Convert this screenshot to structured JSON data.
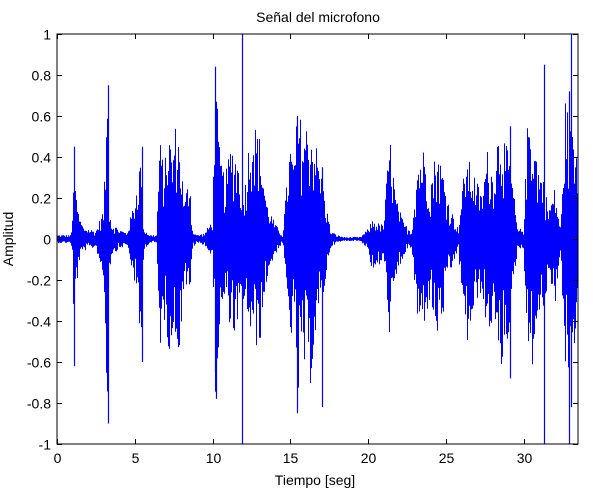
{
  "figure": {
    "title": "Señal del microfono",
    "xlabel": "Tiempo [seg]",
    "ylabel": "Amplitud"
  },
  "chart_data": {
    "type": "line",
    "title": "Señal del microfono",
    "xlabel": "Tiempo [seg]",
    "ylabel": "Amplitud",
    "xlim": [
      0,
      33.5
    ],
    "ylim": [
      -1,
      1
    ],
    "xticks": [
      0,
      5,
      10,
      15,
      20,
      25,
      30
    ],
    "yticks": [
      -1,
      -0.8,
      -0.6,
      -0.4,
      -0.2,
      0,
      0.2,
      0.4,
      0.6,
      0.8,
      1
    ],
    "ytick_labels": [
      "-1",
      "-0.8",
      "-0.6",
      "-0.4",
      "-0.2",
      "0",
      "0.2",
      "0.4",
      "0.6",
      "0.8",
      "1"
    ],
    "grid": false,
    "line_color": "#0000ff",
    "series": [
      {
        "envelope": {
          "t": [
            0,
            0.9,
            1.0,
            1.05,
            1.15,
            1.3,
            1.4,
            1.7,
            2.5,
            3.0,
            3.25,
            3.35,
            3.5,
            4.0,
            4.5,
            5.0,
            5.45,
            5.5,
            5.6,
            6.0,
            6.4,
            6.6,
            6.9,
            7.2,
            7.4,
            7.65,
            7.9,
            8.2,
            8.55,
            8.7,
            9.0,
            9.5,
            10.0,
            10.2,
            10.45,
            10.8,
            11.2,
            11.6,
            12.0,
            12.5,
            13.0,
            13.5,
            14.0,
            14.5,
            15.0,
            15.2,
            15.5,
            15.8,
            16.2,
            16.6,
            17.0,
            17.6,
            18.0,
            18.5,
            19.0,
            19.5,
            20.0,
            20.3,
            20.6,
            21.0,
            21.4,
            21.8,
            22.3,
            22.8,
            23.2,
            23.6,
            24.0,
            24.4,
            24.8,
            25.2,
            25.8,
            26.3,
            26.8,
            27.3,
            27.7,
            28.0,
            28.5,
            28.8,
            29.2,
            29.6,
            30.0,
            30.3,
            30.6,
            31.0,
            31.3,
            31.6,
            32.0,
            32.4,
            32.7,
            33.0,
            33.5
          ],
          "upper": [
            0.02,
            0.02,
            0.1,
            0.45,
            0.25,
            0.2,
            0.12,
            0.06,
            0.04,
            0.15,
            0.75,
            0.2,
            0.08,
            0.05,
            0.03,
            0.2,
            0.45,
            0.18,
            0.05,
            0.02,
            0.02,
            0.5,
            0.35,
            0.55,
            0.42,
            0.58,
            0.48,
            0.18,
            0.35,
            0.05,
            0.02,
            0.03,
            0.1,
            0.82,
            0.45,
            0.3,
            0.48,
            0.42,
            0.22,
            0.6,
            0.52,
            0.18,
            0.08,
            0.02,
            0.48,
            0.38,
            0.65,
            0.55,
            0.58,
            0.5,
            0.32,
            0.04,
            0.02,
            0.01,
            0.01,
            0.01,
            0.05,
            0.1,
            0.08,
            0.07,
            0.52,
            0.2,
            0.08,
            0.04,
            0.4,
            0.45,
            0.28,
            0.45,
            0.35,
            0.18,
            0.05,
            0.42,
            0.33,
            0.22,
            0.45,
            0.34,
            0.6,
            0.48,
            0.38,
            0.05,
            0.05,
            0.65,
            0.55,
            0.35,
            0.3,
            0.15,
            0.25,
            0.05,
            0.7,
            0.55,
            0.45
          ],
          "lower": [
            -0.02,
            -0.02,
            -0.1,
            -0.52,
            -0.28,
            -0.22,
            -0.12,
            -0.06,
            -0.04,
            -0.2,
            -0.88,
            -0.22,
            -0.08,
            -0.05,
            -0.03,
            -0.22,
            -0.6,
            -0.2,
            -0.05,
            -0.02,
            -0.02,
            -0.55,
            -0.4,
            -0.55,
            -0.48,
            -0.52,
            -0.55,
            -0.18,
            -0.35,
            -0.05,
            -0.02,
            -0.03,
            -0.1,
            -0.78,
            -0.5,
            -0.3,
            -0.45,
            -0.5,
            -0.3,
            -0.5,
            -0.55,
            -0.2,
            -0.08,
            -0.02,
            -0.52,
            -0.4,
            -0.85,
            -0.6,
            -0.78,
            -0.5,
            -0.35,
            -0.04,
            -0.02,
            -0.01,
            -0.01,
            -0.01,
            -0.05,
            -0.18,
            -0.15,
            -0.1,
            -0.48,
            -0.22,
            -0.08,
            -0.04,
            -0.45,
            -0.42,
            -0.3,
            -0.5,
            -0.4,
            -0.2,
            -0.05,
            -0.55,
            -0.38,
            -0.25,
            -0.52,
            -0.4,
            -0.68,
            -0.55,
            -0.42,
            -0.05,
            -0.05,
            -0.6,
            -0.62,
            -0.35,
            -0.45,
            -0.15,
            -0.35,
            -0.05,
            -0.8,
            -0.6,
            -0.5
          ]
        },
        "spikes": [
          {
            "t": 1.1,
            "min": -0.62,
            "max": 0.45
          },
          {
            "t": 3.25,
            "min": -0.9,
            "max": 0.75
          },
          {
            "t": 5.45,
            "min": -0.6,
            "max": 0.45
          },
          {
            "t": 10.15,
            "min": -0.65,
            "max": 0.84
          },
          {
            "t": 10.25,
            "min": -0.78,
            "max": 0.55
          },
          {
            "t": 11.9,
            "min": -1.0,
            "max": 1.0
          },
          {
            "t": 15.45,
            "min": -0.85,
            "max": 0.6
          },
          {
            "t": 17.05,
            "min": -0.82,
            "max": 0.35
          },
          {
            "t": 29.15,
            "min": -0.68,
            "max": 0.55
          },
          {
            "t": 31.3,
            "min": -1.0,
            "max": 0.85
          },
          {
            "t": 32.95,
            "min": -1.0,
            "max": 0.72
          },
          {
            "t": 33.05,
            "min": -0.82,
            "max": 1.0
          }
        ]
      }
    ]
  }
}
